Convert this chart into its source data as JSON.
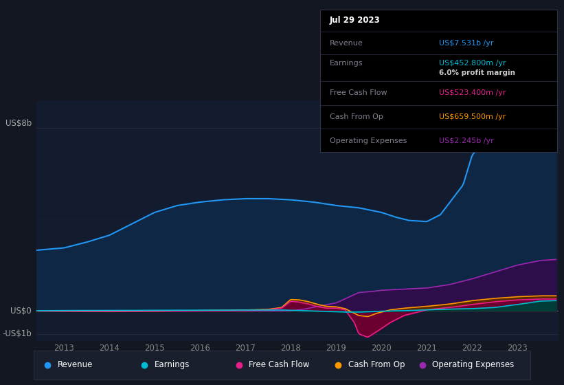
{
  "bg_color": "#131722",
  "plot_bg_color": "#131c2e",
  "colors": {
    "revenue": "#2196f3",
    "earnings": "#00bcd4",
    "fcf": "#e91e8c",
    "cashop": "#ff9800",
    "opex": "#9c27b0",
    "revenue_fill": "#0d2744",
    "opex_fill": "#2d0d4a",
    "cashop_fill": "#5c2800",
    "fcf_fill": "#6b0030",
    "earnings_fill": "#003d38"
  },
  "legend": [
    {
      "label": "Revenue",
      "color": "#2196f3"
    },
    {
      "label": "Earnings",
      "color": "#00bcd4"
    },
    {
      "label": "Free Cash Flow",
      "color": "#e91e8c"
    },
    {
      "label": "Cash From Op",
      "color": "#ff9800"
    },
    {
      "label": "Operating Expenses",
      "color": "#9c27b0"
    }
  ],
  "tooltip": {
    "date": "Jul 29 2023",
    "revenue_label": "Revenue",
    "revenue_value": "US$7.531b",
    "earnings_label": "Earnings",
    "earnings_value": "US$452.800m",
    "margin_text": "6.0% profit margin",
    "fcf_label": "Free Cash Flow",
    "fcf_value": "US$523.400m",
    "cashop_label": "Cash From Op",
    "cashop_value": "US$659.500m",
    "opex_label": "Operating Expenses",
    "opex_value": "US$2.245b"
  },
  "ylabel_top": "US$8b",
  "ylabel_mid": "US$0",
  "ylabel_bot": "-US$1b",
  "x_ticks": [
    2013,
    2014,
    2015,
    2016,
    2017,
    2018,
    2019,
    2020,
    2021,
    2022,
    2023
  ],
  "ylim": [
    -1.3,
    9.2
  ],
  "xlim": [
    2012.4,
    2023.9
  ]
}
